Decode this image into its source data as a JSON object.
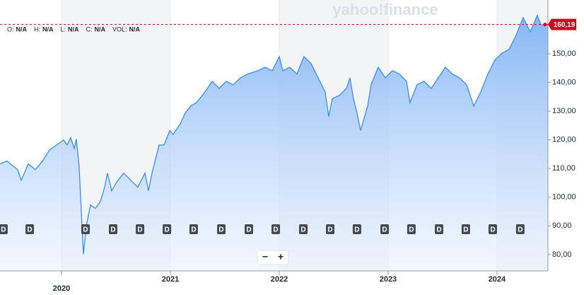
{
  "chart_data": {
    "type": "area",
    "watermark": "yahoo!finance",
    "ohlc": [
      {
        "label": "O:",
        "value": "N/A"
      },
      {
        "label": "H:",
        "value": "N/A"
      },
      {
        "label": "L:",
        "value": "N/A"
      },
      {
        "label": "C:",
        "value": "N/A"
      },
      {
        "label": "VOL:",
        "value": "N/A"
      }
    ],
    "color": "#3b8df0",
    "x": [
      2019.435,
      2019.5,
      2019.532,
      2019.597,
      2019.63,
      2019.695,
      2019.76,
      2019.825,
      2019.89,
      2019.955,
      2020.019,
      2020.052,
      2020.084,
      2020.117,
      2020.136,
      2020.162,
      2020.182,
      2020.201,
      2020.227,
      2020.266,
      2020.312,
      2020.357,
      2020.396,
      2020.422,
      2020.461,
      2020.506,
      2020.571,
      2020.636,
      2020.701,
      2020.766,
      2020.799,
      2020.831,
      2020.864,
      2020.896,
      2020.942,
      2020.994,
      2021.026,
      2021.091,
      2021.136,
      2021.188,
      2021.24,
      2021.318,
      2021.383,
      2021.448,
      2021.513,
      2021.578,
      2021.643,
      2021.708,
      2021.805,
      2021.87,
      2021.935,
      2022.0,
      2022.032,
      2022.097,
      2022.162,
      2022.227,
      2022.292,
      2022.357,
      2022.422,
      2022.455,
      2022.487,
      2022.552,
      2022.617,
      2022.649,
      2022.682,
      2022.714,
      2022.747,
      2022.812,
      2022.844,
      2022.909,
      2022.974,
      2023.039,
      2023.104,
      2023.169,
      2023.201,
      2023.266,
      2023.331,
      2023.396,
      2023.461,
      2023.526,
      2023.591,
      2023.656,
      2023.721,
      2023.786,
      2023.851,
      2023.916,
      2023.981,
      2024.045,
      2024.11,
      2024.175,
      2024.24,
      2024.305,
      2024.37,
      2024.403,
      2024.468
    ],
    "values": [
      111.6,
      112.6,
      111.6,
      109.6,
      105.9,
      111.6,
      109.6,
      112.6,
      116.5,
      118.2,
      119.9,
      118.2,
      120.7,
      117.0,
      120.2,
      110.8,
      94.8,
      80.1,
      89.9,
      97.3,
      96.1,
      98.5,
      103.5,
      108.4,
      102.2,
      105.2,
      108.4,
      105.9,
      103.5,
      108.4,
      102.2,
      108.4,
      113.3,
      118.2,
      118.2,
      123.2,
      121.9,
      125.6,
      129.3,
      131.8,
      133.0,
      136.7,
      140.4,
      137.9,
      140.4,
      139.2,
      141.6,
      142.9,
      144.1,
      145.3,
      144.1,
      149.0,
      144.1,
      145.3,
      142.9,
      149.0,
      146.6,
      141.6,
      136.7,
      128.1,
      134.3,
      135.5,
      137.9,
      141.6,
      134.3,
      129.3,
      123.2,
      131.8,
      139.2,
      145.3,
      141.6,
      144.1,
      142.9,
      140.4,
      133.0,
      139.2,
      140.4,
      137.9,
      141.6,
      145.3,
      142.9,
      141.6,
      139.2,
      131.8,
      136.7,
      142.9,
      147.8,
      150.2,
      151.5,
      156.4,
      162.6,
      157.6,
      163.3,
      160.1,
      160.19
    ],
    "last_value": 160.19,
    "last_value_label": "160,19",
    "xlim": [
      2019.435,
      2024.468
    ],
    "xticks": [
      2020,
      2021,
      2022,
      2023,
      2024
    ],
    "ylim": [
      74.3,
      168.72
    ],
    "yticks": [
      {
        "value": 80,
        "label": "80,00"
      },
      {
        "value": 90,
        "label": "90,00"
      },
      {
        "value": 100,
        "label": "100,00"
      },
      {
        "value": 110,
        "label": "110,00"
      },
      {
        "value": 120,
        "label": "120,00"
      },
      {
        "value": 130,
        "label": "130,00"
      },
      {
        "value": 140,
        "label": "140,00"
      },
      {
        "value": 150,
        "label": "150,00"
      }
    ],
    "dividend_markers": {
      "label": "D",
      "x": [
        2019.467,
        2019.708,
        2020.221,
        2020.474,
        2020.721,
        2020.968,
        2021.214,
        2021.468,
        2021.721,
        2021.968,
        2022.221,
        2022.468,
        2022.714,
        2022.968,
        2023.214,
        2023.468,
        2023.714,
        2023.961,
        2024.214
      ]
    },
    "zoom": [
      "−",
      "+"
    ]
  }
}
